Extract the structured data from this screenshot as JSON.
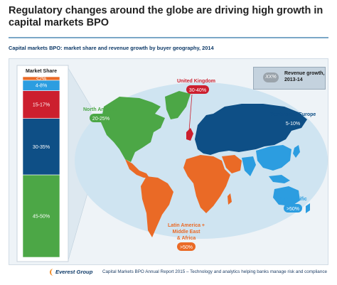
{
  "title": "Regulatory changes around the globe are driving high growth in capital markets BPO",
  "subtitle": "Capital markets BPO: market share and revenue growth by buyer geography, 2014",
  "legend": {
    "pill": "XX%",
    "label": "Revenue growth, 2013-14"
  },
  "footer": {
    "logo": "Everest Group",
    "text": "Capital Markets BPO Annual Report 2015 – Technology and analytics helping banks manage risk and compliance"
  },
  "colors": {
    "north_america": "#4ca746",
    "uk": "#cc1f2e",
    "continental_europe": "#0e4f86",
    "asia_pacific": "#2c9de0",
    "latam_mea": "#ea6a26",
    "other_land": "#9ab0c4",
    "ocean": "#cfe4f1"
  },
  "chart_data": {
    "type": "bar",
    "subtype": "stacked-100",
    "title": "Market Share",
    "categories": [
      "North America",
      "Continental Europe",
      "United Kingdom",
      "Asia Pacific",
      "Latin America + Middle East & Africa"
    ],
    "segments": [
      {
        "region": "North America",
        "label": "45-50%",
        "value": 47.5,
        "growth": "20-25%",
        "color": "#4ca746"
      },
      {
        "region": "Continental Europe",
        "label": "30-35%",
        "value": 32.5,
        "growth": "5-10%",
        "color": "#0e4f86"
      },
      {
        "region": "United Kingdom",
        "label": "15-17%",
        "value": 16,
        "growth": "30-40%",
        "color": "#cc1f2e"
      },
      {
        "region": "Asia Pacific",
        "label": "4-8%",
        "value": 6,
        "growth": ">50%",
        "color": "#2c9de0"
      },
      {
        "region": "Latin America + Middle East & Africa",
        "label": "<2%",
        "value": 2,
        "growth": ">50%",
        "color": "#ea6a26"
      }
    ],
    "regions": [
      {
        "name": "United Kingdom",
        "growth": "30-40%",
        "color": "#cc1f2e"
      },
      {
        "name": "North America",
        "growth": "20-25%",
        "color": "#4ca746"
      },
      {
        "name": "Continental Europe",
        "growth": "5-10%",
        "color": "#0e4f86"
      },
      {
        "name": "Asia Pacific",
        "growth": ">50%",
        "color": "#2c9de0"
      },
      {
        "name": "Latin America + Middle East & Africa",
        "name_lines": [
          "Latin America +",
          "Middle East",
          "& Africa"
        ],
        "growth": ">50%",
        "color": "#ea6a26"
      }
    ]
  }
}
